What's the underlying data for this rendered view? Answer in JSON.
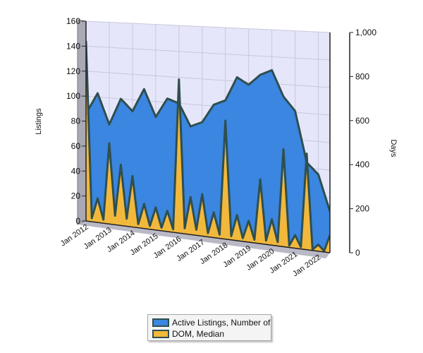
{
  "chart_data": {
    "type": "area",
    "x": [
      "Jan 2012",
      "Jul 2012",
      "Jan 2013",
      "Jul 2013",
      "Jan 2014",
      "Jul 2014",
      "Jan 2015",
      "Jul 2015",
      "Jan 2016",
      "Jul 2016",
      "Jan 2017",
      "Jul 2017",
      "Jan 2018",
      "Jul 2018",
      "Jan 2019",
      "Jul 2019",
      "Jan 2020",
      "Jul 2020",
      "Jan 2021",
      "Jul 2021",
      "Jan 2022",
      "Jul 2022"
    ],
    "x_tick_labels": [
      "Jan 2012",
      "Jan 2013",
      "Jan 2014",
      "Jan 2015",
      "Jan 2016",
      "Jan 2017",
      "Jan 2018",
      "Jan 2019",
      "Jan 2020",
      "Jan 2021",
      "Jan 2022"
    ],
    "series": [
      {
        "name": "Active Listings, Number of",
        "axis": "left",
        "color": "#3a86e0",
        "values": [
          86,
          103,
          79,
          100,
          91,
          109,
          88,
          103,
          100,
          83,
          87,
          101,
          105,
          123,
          118,
          126,
          130,
          111,
          101,
          64,
          56,
          30
        ]
      },
      {
        "name": "DOM, Median",
        "axis": "right",
        "color": "#f2b83c",
        "values": [
          900,
          120,
          400,
          300,
          250,
          120,
          110,
          100,
          740,
          180,
          200,
          120,
          560,
          120,
          100,
          300,
          120,
          450,
          60,
          440,
          30,
          80
        ]
      }
    ],
    "y_left": {
      "label": "Listings",
      "ticks": [
        "0",
        "20",
        "40",
        "60",
        "80",
        "100",
        "120",
        "140",
        "160"
      ],
      "range": [
        0,
        160
      ]
    },
    "y_right": {
      "label": "Days",
      "ticks": [
        "0",
        "200",
        "400",
        "600",
        "800",
        "1,000"
      ],
      "range": [
        0,
        1000
      ]
    },
    "style": "3d",
    "grid": true,
    "legend_position": "bottom-center"
  },
  "colors": {
    "listings": "#3a86e0",
    "dom": "#f2b83c",
    "outline": "#2f4f4f",
    "plot_bg": "#e6e6fb",
    "wall": "#a9a9b6"
  }
}
